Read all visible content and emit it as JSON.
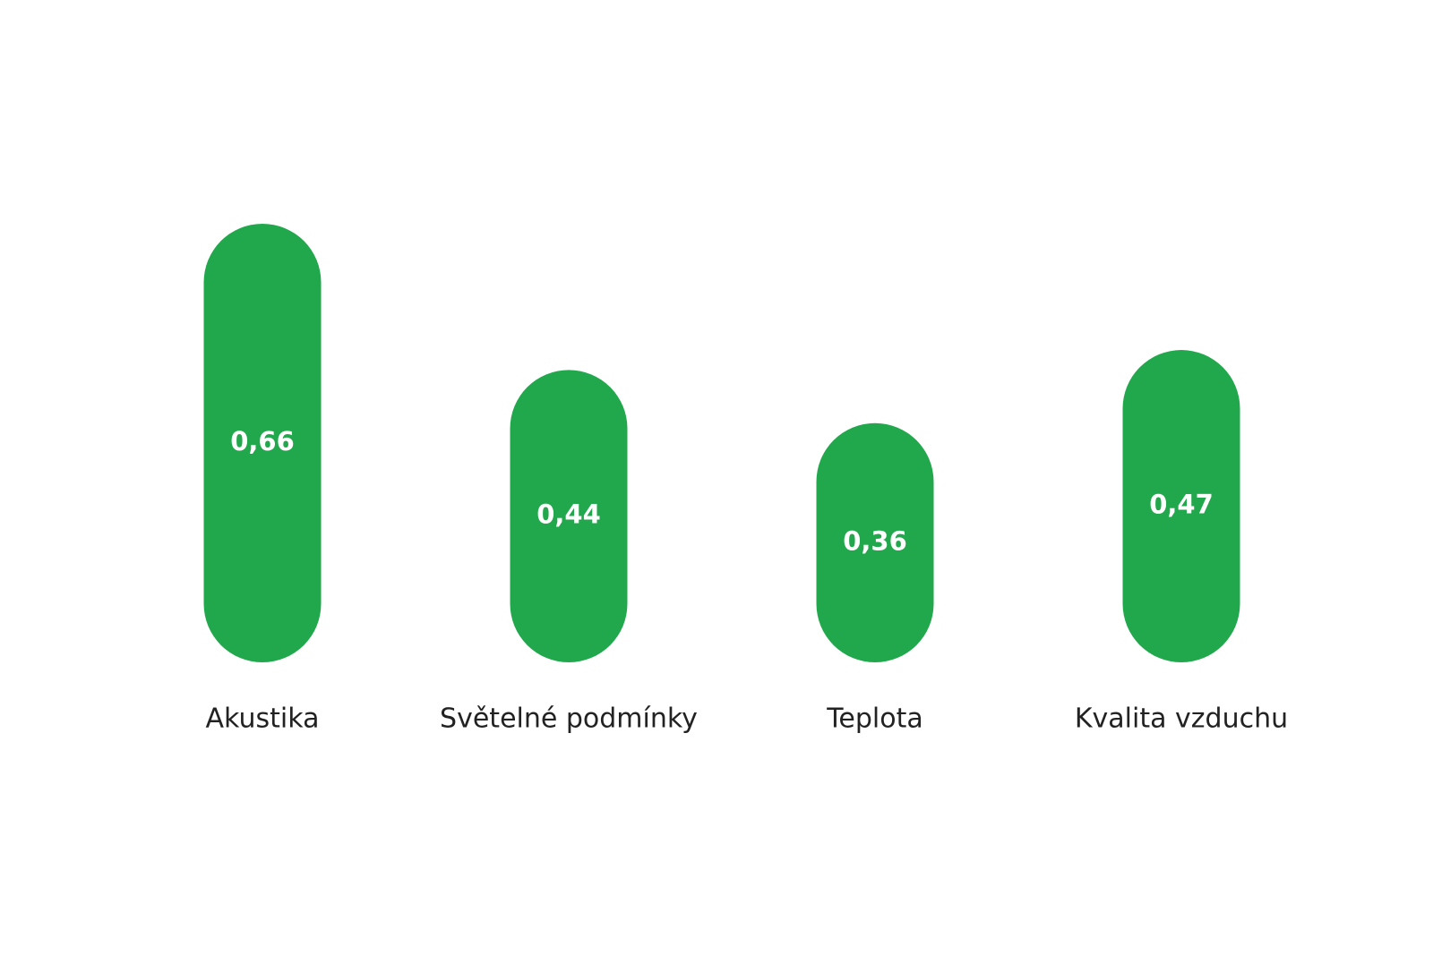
{
  "chart_data": {
    "type": "bar",
    "categories": [
      "Akustika",
      "Světelné podmínky",
      "Teplota",
      "Kvalita vzduchu"
    ],
    "values": [
      0.66,
      0.44,
      0.36,
      0.47
    ],
    "value_labels": [
      "0,66",
      "0,44",
      "0,36",
      "0,47"
    ],
    "color": "#22a84c"
  }
}
